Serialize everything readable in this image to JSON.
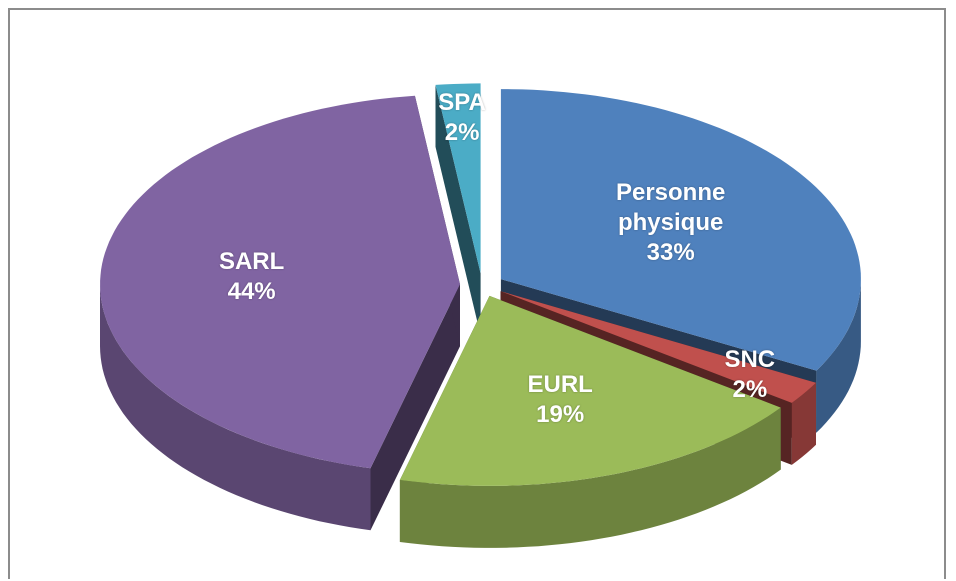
{
  "chart_data": {
    "type": "pie",
    "categories": [
      "Personne physique",
      "SNC",
      "EURL",
      "SARL",
      "SPA"
    ],
    "values": [
      33,
      2,
      19,
      44,
      2
    ],
    "value_labels": [
      "33%",
      "2%",
      "19%",
      "44%",
      "2%"
    ],
    "colors": [
      "#4f81bd",
      "#c0504d",
      "#9bbb59",
      "#8064a2",
      "#4bacc6"
    ]
  }
}
